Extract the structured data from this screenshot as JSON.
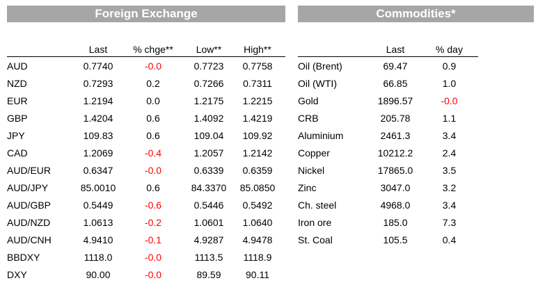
{
  "fx": {
    "title": "Foreign Exchange",
    "columns": [
      "Last",
      "% chge**",
      "Low**",
      "High**"
    ],
    "rows": [
      {
        "name": "AUD",
        "last": "0.7740",
        "chg": "-0.0",
        "low": "0.7723",
        "high": "0.7758",
        "neg": true
      },
      {
        "name": "NZD",
        "last": "0.7293",
        "chg": "0.2",
        "low": "0.7266",
        "high": "0.7311",
        "neg": false
      },
      {
        "name": "EUR",
        "last": "1.2194",
        "chg": "0.0",
        "low": "1.2175",
        "high": "1.2215",
        "neg": false
      },
      {
        "name": "GBP",
        "last": "1.4204",
        "chg": "0.6",
        "low": "1.4092",
        "high": "1.4219",
        "neg": false
      },
      {
        "name": "JPY",
        "last": "109.83",
        "chg": "0.6",
        "low": "109.04",
        "high": "109.92",
        "neg": false
      },
      {
        "name": "CAD",
        "last": "1.2069",
        "chg": "-0.4",
        "low": "1.2057",
        "high": "1.2142",
        "neg": true
      },
      {
        "name": "AUD/EUR",
        "last": "0.6347",
        "chg": "-0.0",
        "low": "0.6339",
        "high": "0.6359",
        "neg": true
      },
      {
        "name": "AUD/JPY",
        "last": "85.0010",
        "chg": "0.6",
        "low": "84.3370",
        "high": "85.0850",
        "neg": false
      },
      {
        "name": "AUD/GBP",
        "last": "0.5449",
        "chg": "-0.6",
        "low": "0.5446",
        "high": "0.5492",
        "neg": true
      },
      {
        "name": "AUD/NZD",
        "last": "1.0613",
        "chg": "-0.2",
        "low": "1.0601",
        "high": "1.0640",
        "neg": true
      },
      {
        "name": "AUD/CNH",
        "last": "4.9410",
        "chg": "-0.1",
        "low": "4.9287",
        "high": "4.9478",
        "neg": true
      },
      {
        "name": "BBDXY",
        "last": "1118.0",
        "chg": "-0.0",
        "low": "1113.5",
        "high": "1118.9",
        "neg": true
      },
      {
        "name": "DXY",
        "last": "90.00",
        "chg": "-0.0",
        "low": "89.59",
        "high": "90.11",
        "neg": true
      }
    ]
  },
  "commodities": {
    "title": "Commodities*",
    "columns": [
      "Last",
      "% day"
    ],
    "rows": [
      {
        "name": "Oil (Brent)",
        "last": "69.47",
        "day": "0.9",
        "neg": false
      },
      {
        "name": "Oil (WTI)",
        "last": "66.85",
        "day": "1.0",
        "neg": false
      },
      {
        "name": "Gold",
        "last": "1896.57",
        "day": "-0.0",
        "neg": true
      },
      {
        "name": "CRB",
        "last": "205.78",
        "day": "1.1",
        "neg": false
      },
      {
        "name": "Aluminium",
        "last": "2461.3",
        "day": "3.4",
        "neg": false
      },
      {
        "name": "Copper",
        "last": "10212.2",
        "day": "2.4",
        "neg": false
      },
      {
        "name": "Nickel",
        "last": "17865.0",
        "day": "3.5",
        "neg": false
      },
      {
        "name": "Zinc",
        "last": "3047.0",
        "day": "3.2",
        "neg": false
      },
      {
        "name": "Ch. steel",
        "last": "4968.0",
        "day": "3.4",
        "neg": false
      },
      {
        "name": "Iron ore",
        "last": "185.0",
        "day": "7.3",
        "neg": false
      },
      {
        "name": "St. Coal",
        "last": "105.5",
        "day": "0.4",
        "neg": false
      }
    ]
  },
  "colors": {
    "header_bg": "#a6a6a6",
    "negative": "#ff0000"
  }
}
